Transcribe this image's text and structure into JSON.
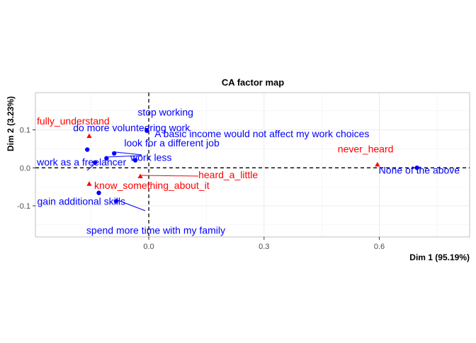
{
  "chart_data": {
    "type": "scatter",
    "title": "CA factor map",
    "xlabel": "Dim 1 (95.19%)",
    "ylabel": "Dim 2 (3.23%)",
    "xlim": [
      -0.295,
      0.835
    ],
    "ylim": [
      -0.182,
      0.198
    ],
    "xticks": [
      0.0,
      0.3,
      0.6
    ],
    "xtick_labels": [
      "0.0",
      "0.3",
      "0.6"
    ],
    "yticks": [
      0.1,
      0.0,
      -0.1
    ],
    "ytick_labels": [
      "0.1",
      "0.0",
      "-0.1"
    ],
    "grid": true,
    "reference_lines": {
      "x": 0,
      "y": 0,
      "style": "dashed"
    },
    "colors": {
      "rows": "#0000ff",
      "cols": "#ff0000"
    },
    "series": [
      {
        "color": "#0000ff",
        "marker": "circle",
        "points": [
          {
            "label": "stop working",
            "x": -0.005,
            "y": 0.098
          },
          {
            "label": "do more volunteering work",
            "x": -0.16,
            "y": 0.048
          },
          {
            "label": "A basic income would not affect my work choices",
            "x": -0.09,
            "y": 0.038
          },
          {
            "label": "look for a different job",
            "x": -0.11,
            "y": 0.025
          },
          {
            "label": "None of the above",
            "x": 0.698,
            "y": 0.0
          },
          {
            "label": "work less",
            "x": -0.035,
            "y": 0.02
          },
          {
            "label": "work as a freelancer",
            "x": -0.14,
            "y": 0.014
          },
          {
            "label": "gain additional skills",
            "x": -0.13,
            "y": -0.066
          },
          {
            "label": "spend more time with my family",
            "x": -0.085,
            "y": -0.088
          }
        ]
      },
      {
        "color": "#ff0000",
        "marker": "triangle",
        "points": [
          {
            "label": "fully_understand",
            "x": -0.155,
            "y": 0.084
          },
          {
            "label": "never_heard",
            "x": 0.595,
            "y": 0.009
          },
          {
            "label": "heard_a_little",
            "x": -0.022,
            "y": -0.022
          },
          {
            "label": "know_something_about_it",
            "x": -0.155,
            "y": -0.042
          }
        ]
      }
    ]
  }
}
